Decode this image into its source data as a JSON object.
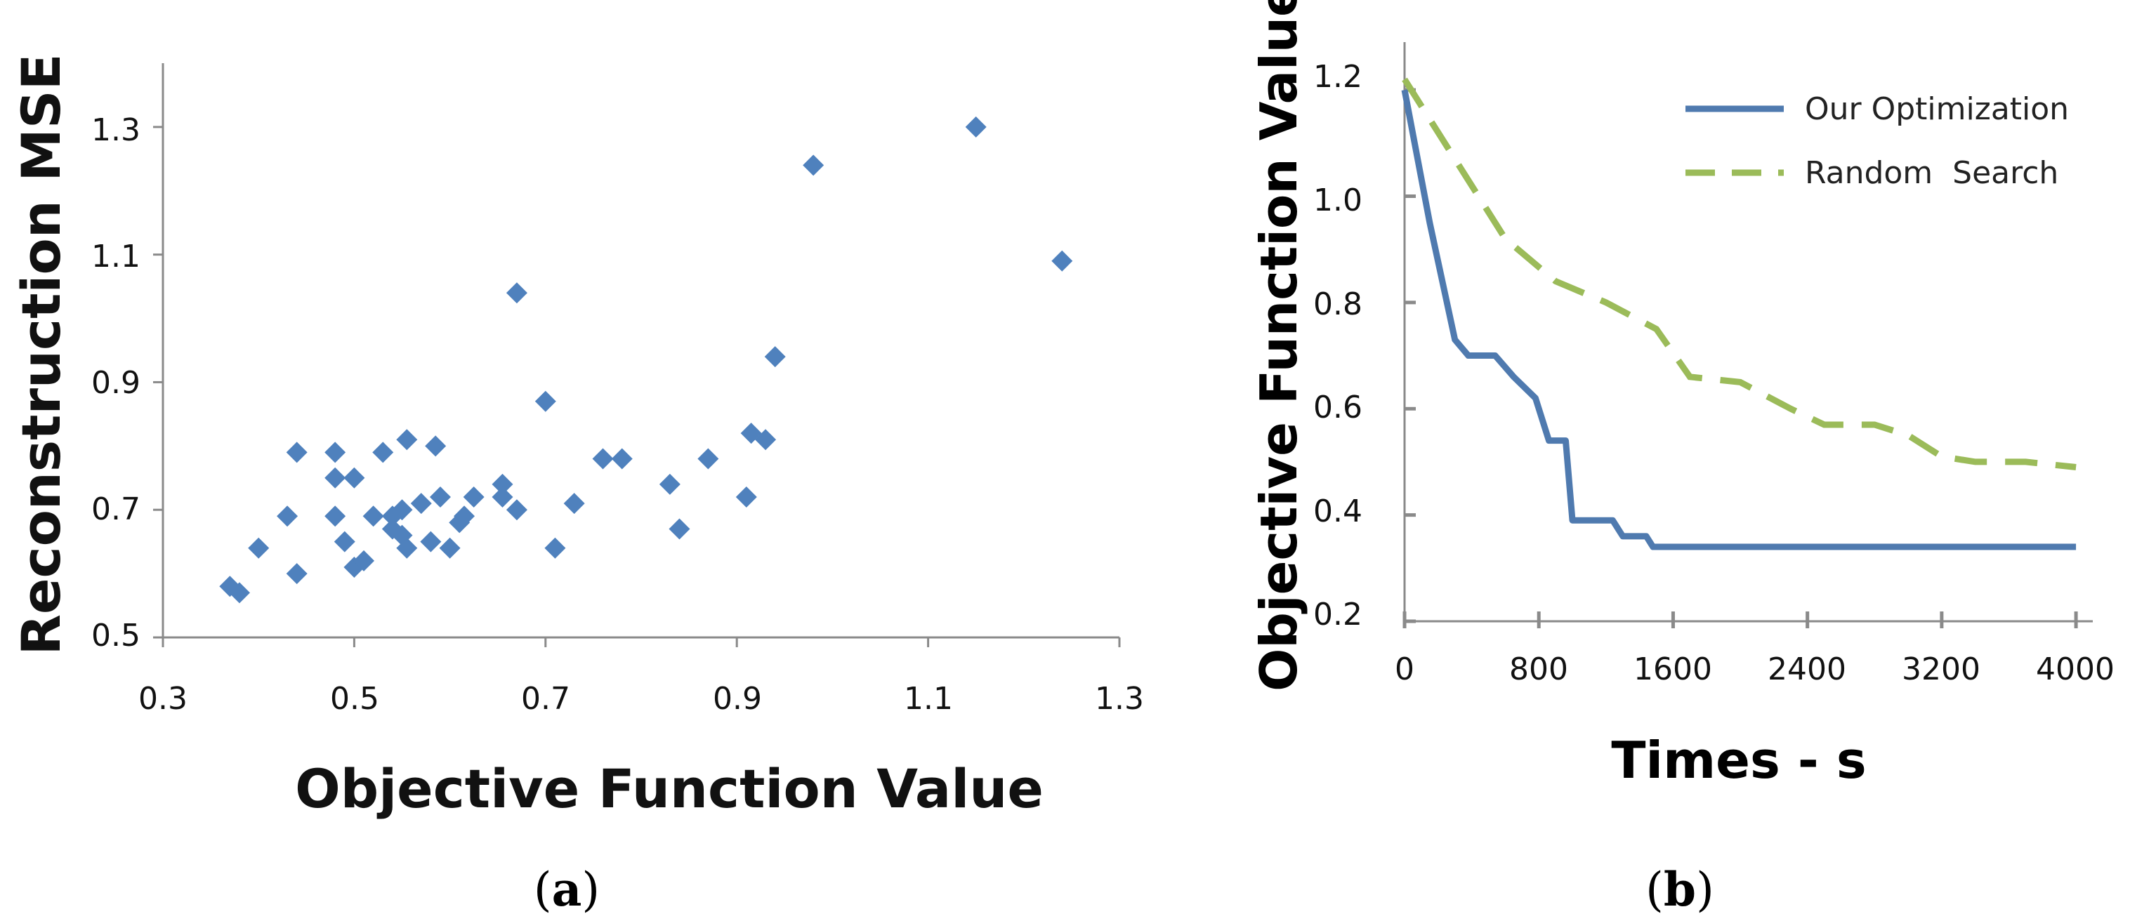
{
  "chart_data": [
    {
      "type": "scatter",
      "title": "",
      "xlabel": "Objective Function Value",
      "ylabel": "Reconstruction MSE",
      "caption_letter": "a",
      "xlim": [
        0.3,
        1.3
      ],
      "ylim": [
        0.5,
        1.4
      ],
      "xticks": [
        "0.3",
        "0.5",
        "0.7",
        "0.9",
        "1.1",
        "1.3"
      ],
      "yticks": [
        "0.5",
        "0.7",
        "0.9",
        "1.1",
        "1.3"
      ],
      "marker_color": "#4F81BD",
      "points": [
        [
          0.37,
          0.58
        ],
        [
          0.38,
          0.57
        ],
        [
          0.4,
          0.64
        ],
        [
          0.43,
          0.69
        ],
        [
          0.44,
          0.79
        ],
        [
          0.44,
          0.6
        ],
        [
          0.48,
          0.79
        ],
        [
          0.48,
          0.69
        ],
        [
          0.48,
          0.75
        ],
        [
          0.49,
          0.65
        ],
        [
          0.5,
          0.75
        ],
        [
          0.5,
          0.61
        ],
        [
          0.51,
          0.62
        ],
        [
          0.52,
          0.69
        ],
        [
          0.53,
          0.79
        ],
        [
          0.54,
          0.67
        ],
        [
          0.54,
          0.69
        ],
        [
          0.55,
          0.7
        ],
        [
          0.55,
          0.66
        ],
        [
          0.555,
          0.64
        ],
        [
          0.555,
          0.81
        ],
        [
          0.57,
          0.71
        ],
        [
          0.58,
          0.65
        ],
        [
          0.585,
          0.8
        ],
        [
          0.59,
          0.72
        ],
        [
          0.6,
          0.64
        ],
        [
          0.61,
          0.68
        ],
        [
          0.615,
          0.69
        ],
        [
          0.625,
          0.72
        ],
        [
          0.655,
          0.74
        ],
        [
          0.655,
          0.72
        ],
        [
          0.67,
          0.7
        ],
        [
          0.67,
          1.04
        ],
        [
          0.7,
          0.87
        ],
        [
          0.71,
          0.64
        ],
        [
          0.73,
          0.71
        ],
        [
          0.76,
          0.78
        ],
        [
          0.78,
          0.78
        ],
        [
          0.83,
          0.74
        ],
        [
          0.84,
          0.67
        ],
        [
          0.87,
          0.78
        ],
        [
          0.91,
          0.72
        ],
        [
          0.915,
          0.82
        ],
        [
          0.93,
          0.81
        ],
        [
          0.94,
          0.94
        ],
        [
          0.98,
          1.24
        ],
        [
          1.15,
          1.3
        ],
        [
          1.24,
          1.09
        ]
      ]
    },
    {
      "type": "line",
      "title": "",
      "xlabel": "Times - s",
      "ylabel": "Objective Function Value",
      "caption_letter": "b",
      "xlim": [
        0,
        4100
      ],
      "ylim": [
        0.2,
        1.29
      ],
      "xticks": [
        "0",
        "800",
        "1600",
        "2400",
        "3200",
        "4000"
      ],
      "yticks": [
        "0.2",
        "0.4",
        "0.6",
        "0.8",
        "1.0",
        "1.2"
      ],
      "legend_position": "top-right",
      "series": [
        {
          "name": "Our Optimization",
          "color": "#4F7AAF",
          "dash": "solid",
          "points": [
            [
              0,
              1.2
            ],
            [
              150,
              0.95
            ],
            [
              300,
              0.73
            ],
            [
              380,
              0.7
            ],
            [
              540,
              0.7
            ],
            [
              650,
              0.66
            ],
            [
              780,
              0.62
            ],
            [
              860,
              0.54
            ],
            [
              960,
              0.54
            ],
            [
              1000,
              0.39
            ],
            [
              1240,
              0.39
            ],
            [
              1300,
              0.36
            ],
            [
              1440,
              0.36
            ],
            [
              1480,
              0.34
            ],
            [
              4000,
              0.34
            ]
          ]
        },
        {
          "name": "Random  Search",
          "color": "#9BBB59",
          "dash": "dashed",
          "points": [
            [
              0,
              1.22
            ],
            [
              300,
              1.07
            ],
            [
              600,
              0.92
            ],
            [
              900,
              0.84
            ],
            [
              1200,
              0.8
            ],
            [
              1500,
              0.75
            ],
            [
              1700,
              0.66
            ],
            [
              2000,
              0.65
            ],
            [
              2300,
              0.6
            ],
            [
              2500,
              0.57
            ],
            [
              2800,
              0.57
            ],
            [
              3000,
              0.55
            ],
            [
              3200,
              0.51
            ],
            [
              3400,
              0.5
            ],
            [
              3700,
              0.5
            ],
            [
              4000,
              0.49
            ]
          ]
        }
      ]
    }
  ]
}
